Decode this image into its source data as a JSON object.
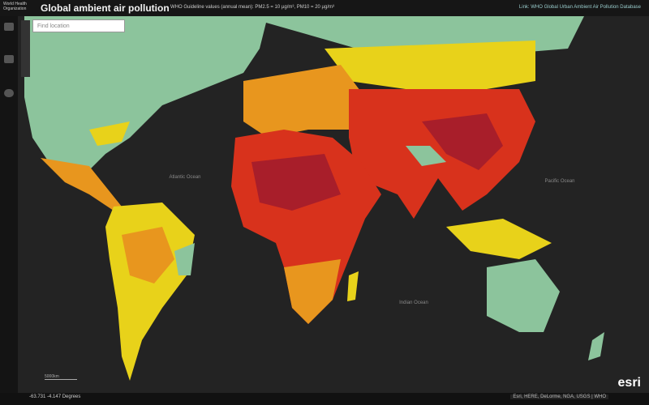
{
  "header": {
    "logo_text": "World Health Organization",
    "title": "Global ambient air pollution",
    "guideline": "WHO Guideline values (annual mean): PM2.5 = 10 µg/m³, PM10 = 20 µg/m³",
    "link": "Link: WHO Global Urban Ambient Air Pollution Database"
  },
  "search": {
    "placeholder": "Find location"
  },
  "map": {
    "labels": [
      "Atlantic Ocean",
      "Pacific Ocean",
      "Indian Ocean"
    ]
  },
  "footer": {
    "scale": "5000km",
    "coords": "-63.731 -4.147 Degrees",
    "attribution": "Esri, HERE, DeLorme, NGA, USGS | WHO",
    "logo": "esri"
  }
}
